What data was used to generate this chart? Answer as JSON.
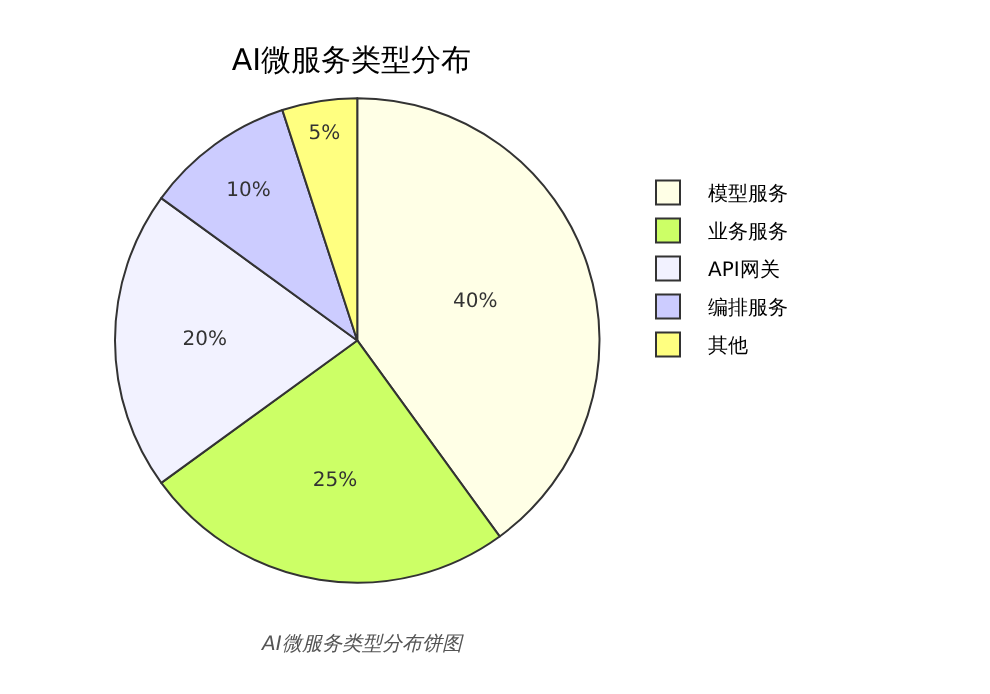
{
  "chart_data": {
    "type": "pie",
    "title": "AI微服务类型分布",
    "categories": [
      "API网关",
      "模型服务",
      "业务服务",
      "编排服务",
      "其他"
    ],
    "values": [
      20,
      40,
      25,
      10,
      5
    ],
    "value_labels": [
      "20%",
      "40%",
      "25%",
      "10%",
      "5%"
    ],
    "colors": [
      "#f2f2ff",
      "#ffffe6",
      "#ccff66",
      "#ccccff",
      "#ffff80"
    ],
    "legend": "right",
    "annotations": [
      "AI微服务类型分布饼图"
    ]
  }
}
